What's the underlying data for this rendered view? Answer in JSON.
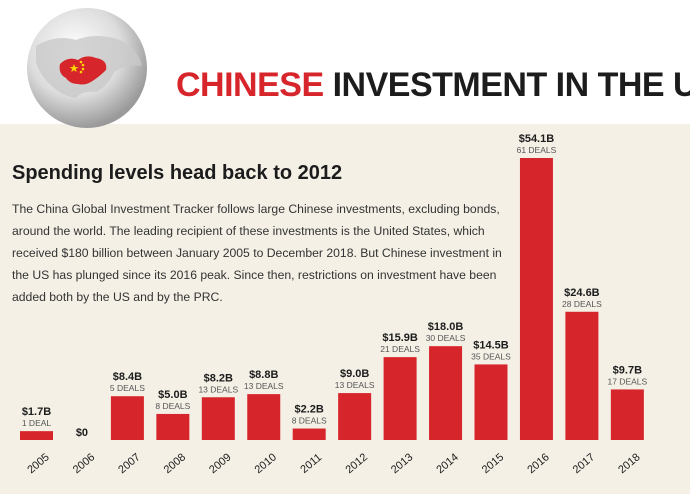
{
  "header": {
    "title_part1": "CHINESE",
    "title_part2": "INVESTMENT IN THE US"
  },
  "intro": {
    "subtitle": "Spending levels head back to 2012",
    "body": "The China Global Investment Tracker follows large Chinese investments, excluding bonds, around the world. The leading recipient of these investments is the United States, which received $180 billion between January 2005 to December 2018. But Chinese investment in the US has plunged since its 2016 peak. Since then, restrictions on investment have been added both by the US and by the PRC."
  },
  "colors": {
    "accent": "#d7262b",
    "panel_bg": "#f4f0e6",
    "text": "#1c1c1c"
  },
  "chart_data": {
    "type": "bar",
    "categories": [
      "2005",
      "2006",
      "2007",
      "2008",
      "2009",
      "2010",
      "2011",
      "2012",
      "2013",
      "2014",
      "2015",
      "2016",
      "2017",
      "2018"
    ],
    "values": [
      1.7,
      0,
      8.4,
      5.0,
      8.2,
      8.8,
      2.2,
      9.0,
      15.9,
      18.0,
      14.5,
      54.1,
      24.6,
      9.7
    ],
    "value_labels": [
      "$1.7B",
      "$0",
      "$8.4B",
      "$5.0B",
      "$8.2B",
      "$8.8B",
      "$2.2B",
      "$9.0B",
      "$15.9B",
      "$18.0B",
      "$14.5B",
      "$54.1B",
      "$24.6B",
      "$9.7B"
    ],
    "deal_labels": [
      "1 DEAL",
      "",
      "5 DEALS",
      "8 DEALS",
      "13 DEALS",
      "13 DEALS",
      "8 DEALS",
      "13 DEALS",
      "21 DEALS",
      "30 DEALS",
      "35 DEALS",
      "61 DEALS",
      "28 DEALS",
      "17 DEALS"
    ],
    "unit": "billion USD",
    "ylim": [
      0,
      54.1
    ]
  }
}
